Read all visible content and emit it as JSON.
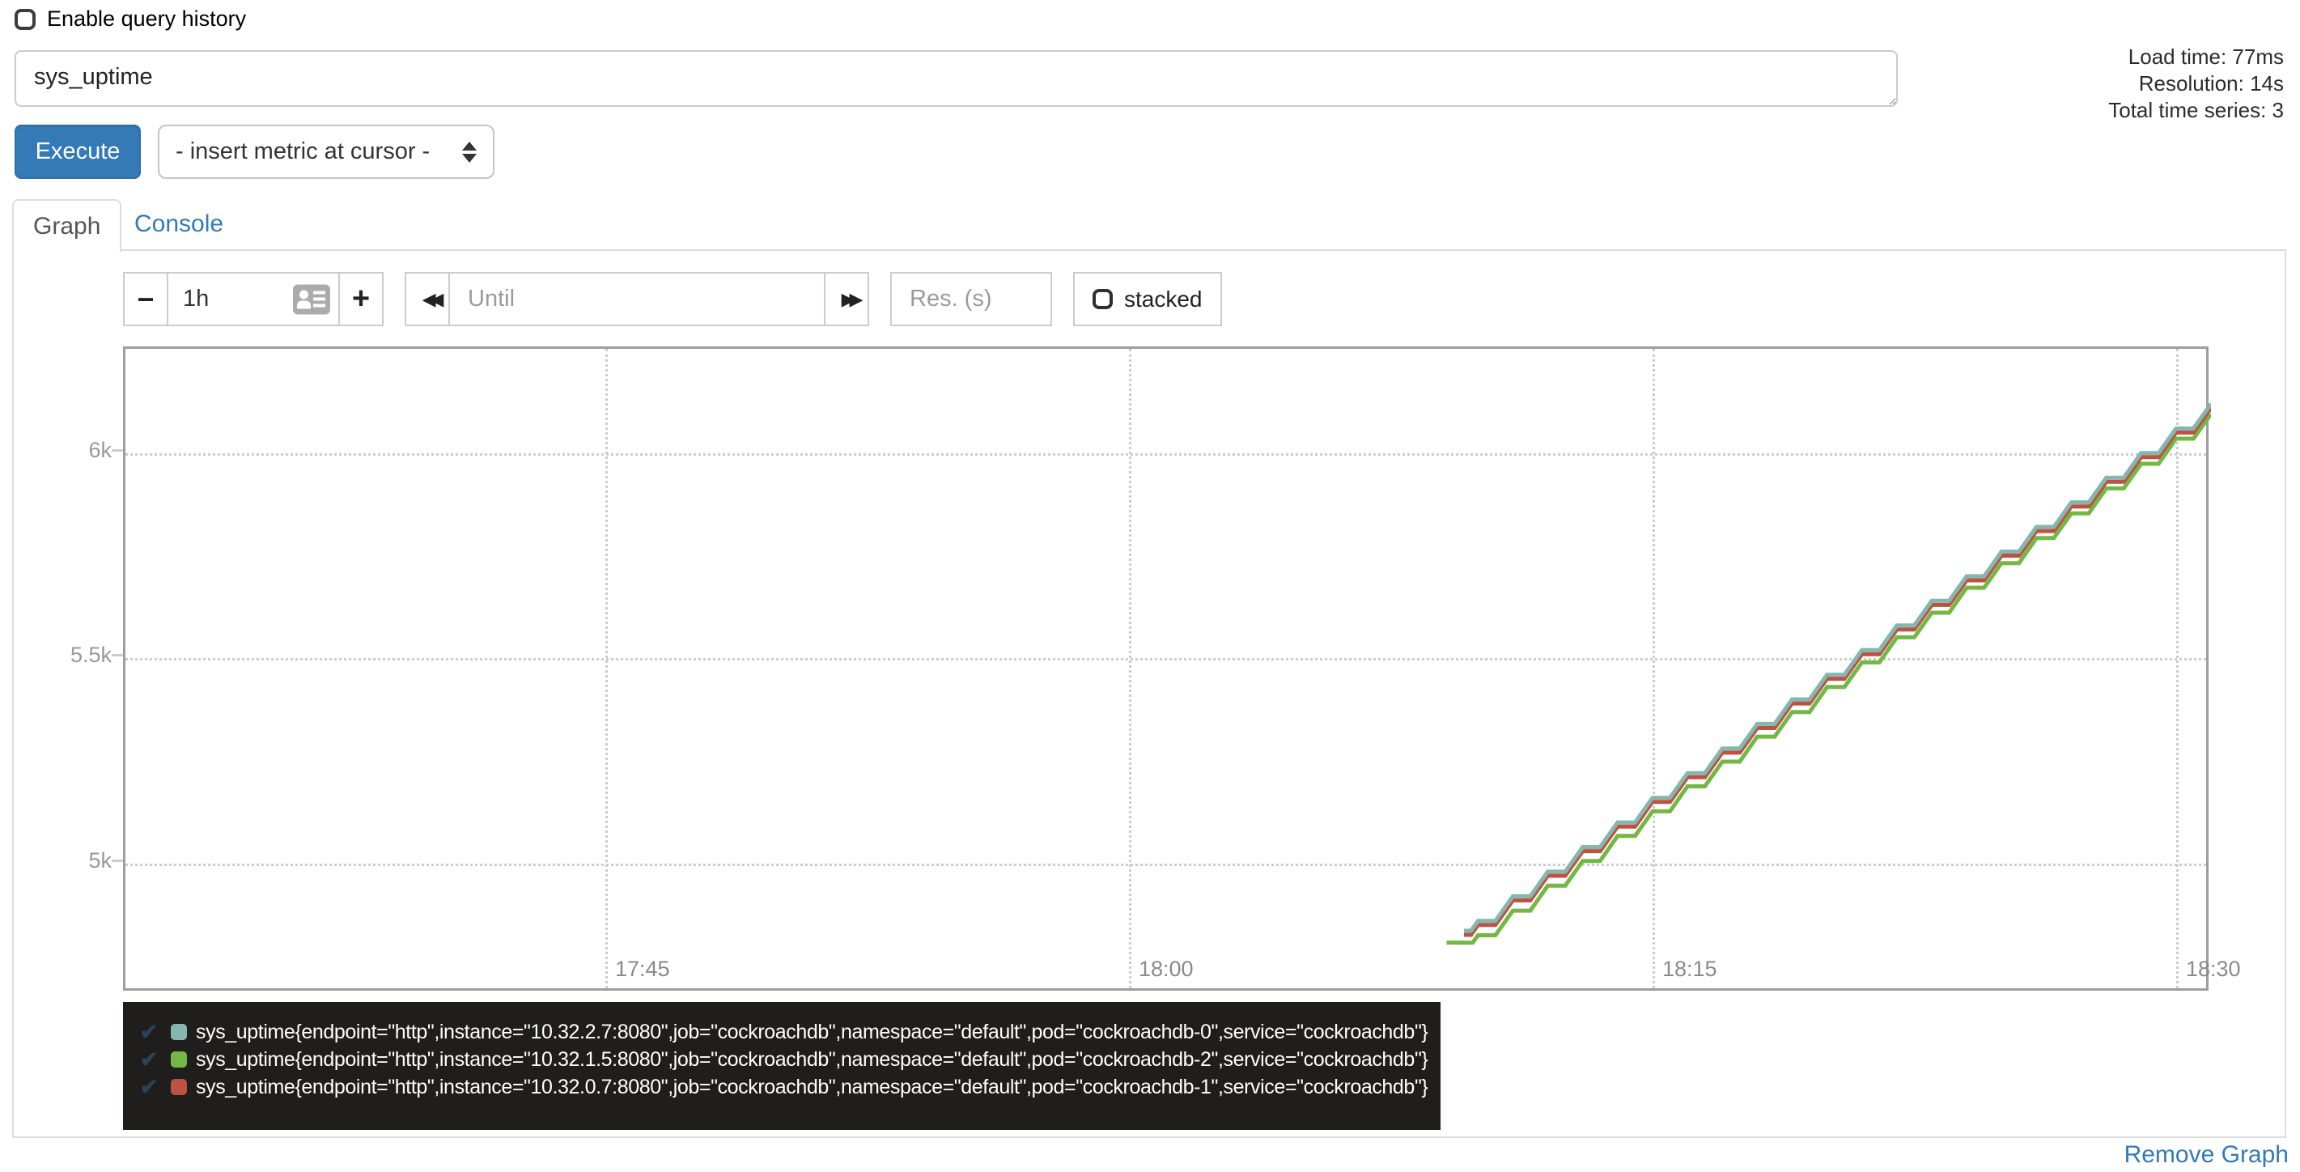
{
  "header": {
    "history_label": "Enable query history",
    "stats": [
      "Load time: 77ms",
      "Resolution: 14s",
      "Total time series: 3"
    ]
  },
  "query": {
    "value": "sys_uptime"
  },
  "toolbar": {
    "execute_label": "Execute",
    "metric_select_value": "- insert metric at cursor -"
  },
  "tabs": {
    "graph": "Graph",
    "console": "Console"
  },
  "graph_controls": {
    "minus_icon": "−",
    "plus_icon": "+",
    "range_value": "1h",
    "rewind_icon": "◀◀",
    "forward_icon": "▶▶",
    "until_placeholder": "Until",
    "res_placeholder": "Res. (s)",
    "stacked_label": "stacked"
  },
  "chart_data": {
    "type": "line",
    "title": "sys_uptime",
    "line_style": "staircase",
    "grid": "dotted",
    "legend_position": "bottom-left",
    "x_unit": "time of day (minutes relative to 18:00)",
    "y_unit": "uptime seconds",
    "x_domain": [
      -28.75,
      31.0
    ],
    "y_domain": [
      4684,
      6254
    ],
    "x_ticks": [
      {
        "t": -15,
        "label": "17:45"
      },
      {
        "t": 0,
        "label": "18:00"
      },
      {
        "t": 15,
        "label": "18:15"
      },
      {
        "t": 30,
        "label": "18:30"
      }
    ],
    "y_ticks": [
      {
        "v": 5000,
        "label": "5k"
      },
      {
        "v": 5500,
        "label": "5.5k"
      },
      {
        "v": 6000,
        "label": "6k"
      }
    ],
    "series": [
      {
        "name": "sys_uptime{endpoint=\"http\",instance=\"10.32.2.7:8080\",job=\"cockroachdb\",namespace=\"default\",pod=\"cockroachdb-0\",service=\"cockroachdb\"}",
        "alias": "cockroachdb-0",
        "color": "#83B7AF",
        "points": [
          [
            9.6,
            4836
          ],
          [
            10,
            4860
          ],
          [
            11,
            4920
          ],
          [
            12,
            4980
          ],
          [
            13,
            5040
          ],
          [
            14,
            5100
          ],
          [
            15,
            5160
          ],
          [
            16,
            5220
          ],
          [
            17,
            5280
          ],
          [
            18,
            5340
          ],
          [
            19,
            5400
          ],
          [
            20,
            5460
          ],
          [
            21,
            5520
          ],
          [
            22,
            5580
          ],
          [
            23,
            5640
          ],
          [
            24,
            5700
          ],
          [
            25,
            5760
          ],
          [
            26,
            5820
          ],
          [
            27,
            5880
          ],
          [
            28,
            5940
          ],
          [
            29,
            6000
          ],
          [
            30,
            6060
          ],
          [
            31,
            6120
          ]
        ]
      },
      {
        "name": "sys_uptime{endpoint=\"http\",instance=\"10.32.1.5:8080\",job=\"cockroachdb\",namespace=\"default\",pod=\"cockroachdb-2\",service=\"cockroachdb\"}",
        "alias": "cockroachdb-2",
        "color": "#73B844",
        "points": [
          [
            9.1,
            4807
          ],
          [
            9.7,
            4807
          ],
          [
            10,
            4825
          ],
          [
            11,
            4885
          ],
          [
            12,
            4946
          ],
          [
            13,
            5006
          ],
          [
            14,
            5067
          ],
          [
            15,
            5127
          ],
          [
            16,
            5188
          ],
          [
            17,
            5248
          ],
          [
            18,
            5309
          ],
          [
            19,
            5369
          ],
          [
            20,
            5430
          ],
          [
            21,
            5490
          ],
          [
            22,
            5551
          ],
          [
            23,
            5611
          ],
          [
            24,
            5672
          ],
          [
            25,
            5732
          ],
          [
            26,
            5793
          ],
          [
            27,
            5853
          ],
          [
            28,
            5914
          ],
          [
            29,
            5974
          ],
          [
            30,
            6035
          ],
          [
            31,
            6095
          ]
        ]
      },
      {
        "name": "sys_uptime{endpoint=\"http\",instance=\"10.32.0.7:8080\",job=\"cockroachdb\",namespace=\"default\",pod=\"cockroachdb-1\",service=\"cockroachdb\"}",
        "alias": "cockroachdb-1",
        "color": "#BE5240",
        "points": [
          [
            9.6,
            4826
          ],
          [
            10,
            4850
          ],
          [
            11,
            4910
          ],
          [
            12,
            4970
          ],
          [
            13,
            5030
          ],
          [
            14,
            5090
          ],
          [
            15,
            5150
          ],
          [
            16,
            5210
          ],
          [
            17,
            5270
          ],
          [
            18,
            5330
          ],
          [
            19,
            5390
          ],
          [
            20,
            5450
          ],
          [
            21,
            5510
          ],
          [
            22,
            5570
          ],
          [
            23,
            5630
          ],
          [
            24,
            5690
          ],
          [
            25,
            5750
          ],
          [
            26,
            5810
          ],
          [
            27,
            5870
          ],
          [
            28,
            5930
          ],
          [
            29,
            5990
          ],
          [
            30,
            6050
          ],
          [
            31,
            6110
          ]
        ]
      }
    ]
  },
  "legend": {
    "check_glyph": "✔",
    "items": [
      {
        "color": "#83B7AF",
        "label": "sys_uptime{endpoint=\"http\",instance=\"10.32.2.7:8080\",job=\"cockroachdb\",namespace=\"default\",pod=\"cockroachdb-0\",service=\"cockroachdb\"}"
      },
      {
        "color": "#73B844",
        "label": "sys_uptime{endpoint=\"http\",instance=\"10.32.1.5:8080\",job=\"cockroachdb\",namespace=\"default\",pod=\"cockroachdb-2\",service=\"cockroachdb\"}"
      },
      {
        "color": "#BE5240",
        "label": "sys_uptime{endpoint=\"http\",instance=\"10.32.0.7:8080\",job=\"cockroachdb\",namespace=\"default\",pod=\"cockroachdb-1\",service=\"cockroachdb\"}"
      }
    ]
  },
  "footer": {
    "remove_graph_label": "Remove Graph"
  }
}
